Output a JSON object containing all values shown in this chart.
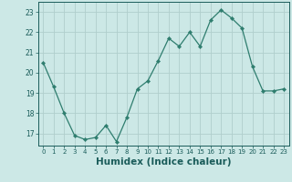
{
  "x": [
    0,
    1,
    2,
    3,
    4,
    5,
    6,
    7,
    8,
    9,
    10,
    11,
    12,
    13,
    14,
    15,
    16,
    17,
    18,
    19,
    20,
    21,
    22,
    23
  ],
  "y": [
    20.5,
    19.3,
    18.0,
    16.9,
    16.7,
    16.8,
    17.4,
    16.6,
    17.8,
    19.2,
    19.6,
    20.6,
    21.7,
    21.3,
    22.0,
    21.3,
    22.6,
    23.1,
    22.7,
    22.2,
    20.3,
    19.1,
    19.1,
    19.2
  ],
  "line_color": "#2e7d6e",
  "marker": "D",
  "marker_size": 2.2,
  "bg_color": "#cce8e6",
  "grid_color": "#b0cecc",
  "tick_color": "#1a5c5a",
  "xlabel": "Humidex (Indice chaleur)",
  "xlabel_fontsize": 7.5,
  "ylim": [
    16.4,
    23.5
  ],
  "xlim": [
    -0.5,
    23.5
  ],
  "yticks": [
    17,
    18,
    19,
    20,
    21,
    22,
    23
  ],
  "xticks": [
    0,
    1,
    2,
    3,
    4,
    5,
    6,
    7,
    8,
    9,
    10,
    11,
    12,
    13,
    14,
    15,
    16,
    17,
    18,
    19,
    20,
    21,
    22,
    23
  ]
}
